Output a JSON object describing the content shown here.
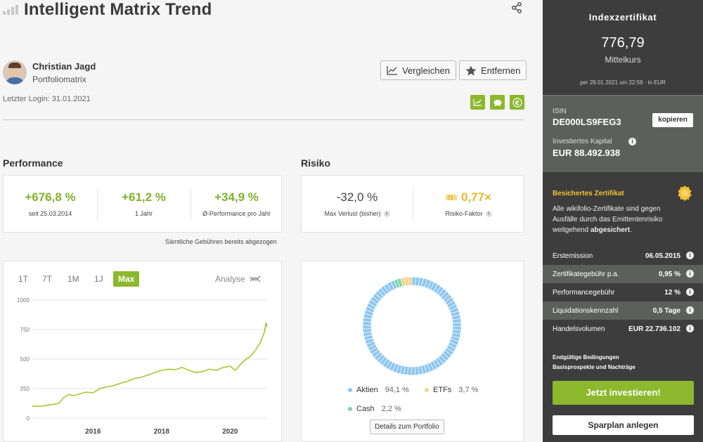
{
  "header": {
    "title": "Intelligent Matrix Trend"
  },
  "profile": {
    "name": "Christian Jagd",
    "role": "Portfoliomatrix",
    "last_login": "Letzter Login: 31.01.2021"
  },
  "actions": {
    "compare_label": "Vergleichen",
    "remove_label": "Entfernen"
  },
  "performance": {
    "title": "Performance",
    "kpis": [
      {
        "value": "+676,8 %",
        "label": "seit 25.03.2014"
      },
      {
        "value": "+61,2 %",
        "label": "1 Jahr"
      },
      {
        "value": "+34,9 %",
        "label": "Ø-Performance pro Jahr"
      }
    ],
    "fee_note": "Sämtliche Gebühren bereits abgezogen"
  },
  "risk": {
    "title": "Risiko",
    "max_loss": {
      "value": "-32,0 %",
      "label": "Max Verlust (bisher)"
    },
    "risk_factor": {
      "value": "0,77×",
      "label": "Risiko-Faktor"
    }
  },
  "chart_controls": {
    "ranges": [
      "1T",
      "7T",
      "1M",
      "1J",
      "Max"
    ],
    "active_range": "Max",
    "analyse_label": "Analyse"
  },
  "chart_data": [
    {
      "type": "line",
      "title": "",
      "xlabel": "",
      "ylabel": "",
      "x_ticks": [
        "2016",
        "2018",
        "2020"
      ],
      "y_ticks": [
        0,
        250,
        500,
        750,
        1000
      ],
      "ylim": [
        0,
        1000
      ],
      "xlim": [
        2014.23,
        2021.08
      ],
      "grid": true,
      "series": [
        {
          "color": "#a6c630",
          "x": [
            2014.23,
            2014.5,
            2014.75,
            2015.0,
            2015.15,
            2015.3,
            2015.45,
            2015.6,
            2015.8,
            2016.0,
            2016.2,
            2016.4,
            2016.6,
            2016.8,
            2017.0,
            2017.2,
            2017.4,
            2017.6,
            2017.8,
            2018.0,
            2018.2,
            2018.4,
            2018.6,
            2018.8,
            2019.0,
            2019.2,
            2019.4,
            2019.6,
            2019.8,
            2020.0,
            2020.15,
            2020.3,
            2020.45,
            2020.6,
            2020.75,
            2020.9,
            2021.0,
            2021.05,
            2021.08
          ],
          "y": [
            100,
            102,
            112,
            125,
            175,
            200,
            190,
            205,
            220,
            215,
            250,
            265,
            275,
            295,
            310,
            335,
            345,
            365,
            385,
            405,
            415,
            410,
            430,
            405,
            385,
            395,
            415,
            405,
            430,
            440,
            405,
            455,
            495,
            525,
            580,
            650,
            730,
            810,
            770
          ]
        }
      ]
    },
    {
      "type": "pie",
      "title": "",
      "labels": [
        "Aktien",
        "ETFs",
        "Cash"
      ],
      "values": [
        94.1,
        3.7,
        2.2
      ],
      "colors": [
        "#8ec7ef",
        "#f6d58c",
        "#76d7b0"
      ]
    }
  ],
  "portfolio": {
    "legend": [
      {
        "name": "Aktien",
        "pct": "94,1 %",
        "color": "#8ec7ef"
      },
      {
        "name": "ETFs",
        "pct": "3,7 %",
        "color": "#f6d58c"
      },
      {
        "name": "Cash",
        "pct": "2,2 %",
        "color": "#76d7b0"
      }
    ],
    "details_label": "Details zum Portfolio"
  },
  "sidebar": {
    "type": "Indexzertifikat",
    "price": "776,79",
    "price_label": "Mittelkurs",
    "date": "per 29.01.2021 um 22:59 · in EUR",
    "isin_label": "ISIN",
    "isin": "DE000LS9FEG3",
    "copy_label": "kopieren",
    "capital_label": "Investiertes Kapital",
    "capital": "EUR 88.492.938",
    "secured_title": "Besichertes Zertifikat",
    "secured_text_prefix": "Alle wikifolio-Zertifikate sind gegen Ausfälle durch das Emittentenrisiko weitgehend ",
    "secured_text_bold": "abgesichert",
    "secured_text_suffix": ".",
    "facts": [
      {
        "label": "Erstemission",
        "value": "06.05.2015"
      },
      {
        "label": "Zertifikategebühr p.a.",
        "value": "0,95 %"
      },
      {
        "label": "Performancegebühr",
        "value": "12 %"
      },
      {
        "label": "Liquidationskennzahl",
        "value": "0,5 Tage"
      },
      {
        "label": "Handelsvolumen",
        "value": "EUR 22.736.102"
      }
    ],
    "links": [
      "Endgültige Bedingungen",
      "Basisprospekte und Nachträge"
    ],
    "invest_label": "Jetzt investieren!",
    "sparplan_label": "Sparplan anlegen"
  }
}
